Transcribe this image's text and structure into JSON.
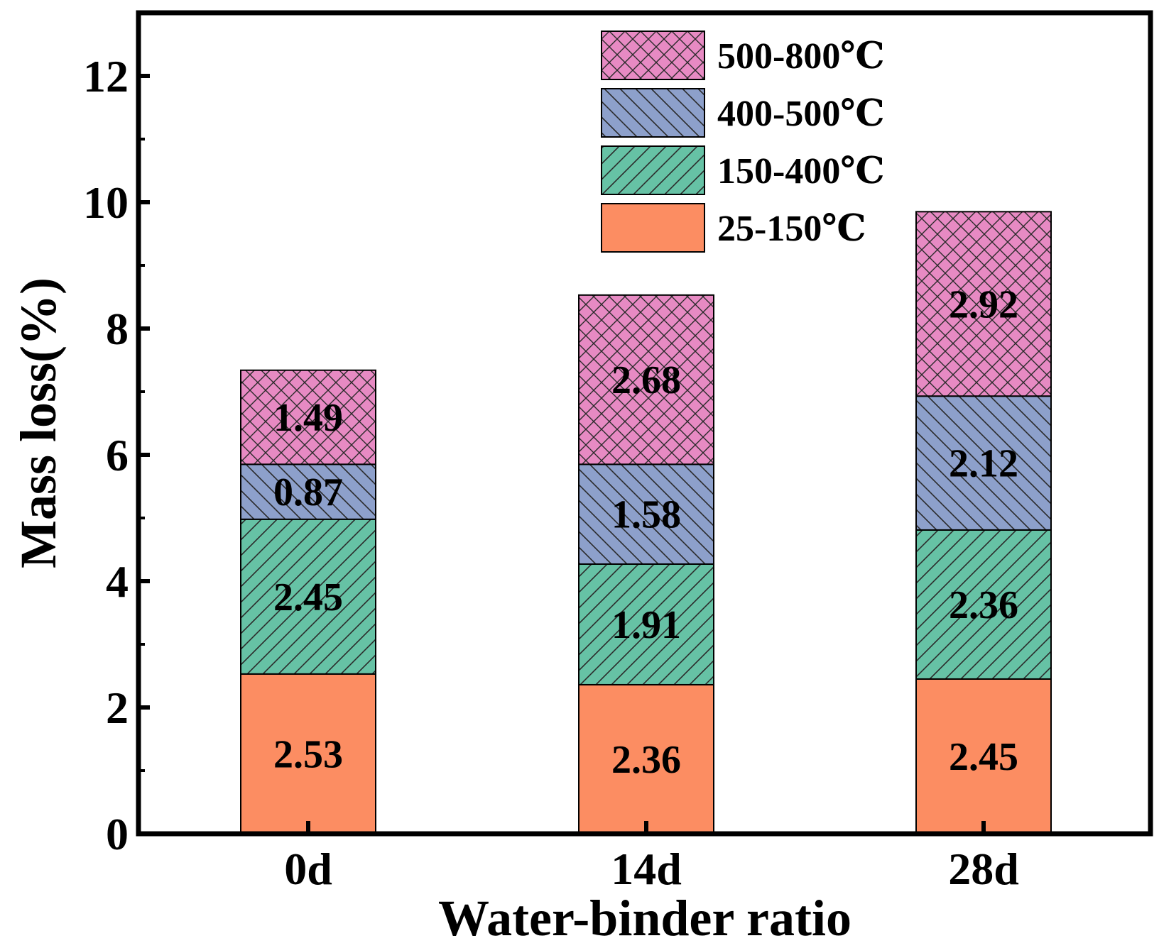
{
  "chart_data": {
    "type": "bar",
    "stacked": true,
    "title": "",
    "xlabel": "Water-binder ratio",
    "ylabel": "Mass loss(%)",
    "categories": [
      "0d",
      "14d",
      "28d"
    ],
    "ylim": [
      0,
      13
    ],
    "yticks": [
      0,
      2,
      4,
      6,
      8,
      10,
      12
    ],
    "ytick_labels": [
      "0",
      "2",
      "4",
      "6",
      "8",
      "10",
      "12"
    ],
    "series": [
      {
        "name": "25-150℃",
        "values": [
          2.53,
          2.36,
          2.45
        ],
        "labels": [
          "2.53",
          "2.36",
          "2.45"
        ],
        "color": "#fc8d62",
        "pattern": "none"
      },
      {
        "name": "150-400℃",
        "values": [
          2.45,
          1.91,
          2.36
        ],
        "labels": [
          "2.45",
          "1.91",
          "2.36"
        ],
        "color": "#66c2a5",
        "pattern": "forward-hatch"
      },
      {
        "name": "400-500℃",
        "values": [
          0.87,
          1.58,
          2.12
        ],
        "labels": [
          "0.87",
          "1.58",
          "2.12"
        ],
        "color": "#8da0cb",
        "pattern": "back-hatch"
      },
      {
        "name": "500-800℃",
        "values": [
          1.49,
          2.68,
          2.92
        ],
        "labels": [
          "1.49",
          "2.68",
          "2.92"
        ],
        "color": "#e78ac3",
        "pattern": "crosshatch"
      }
    ],
    "legend_position": "top-right",
    "grid": false
  }
}
